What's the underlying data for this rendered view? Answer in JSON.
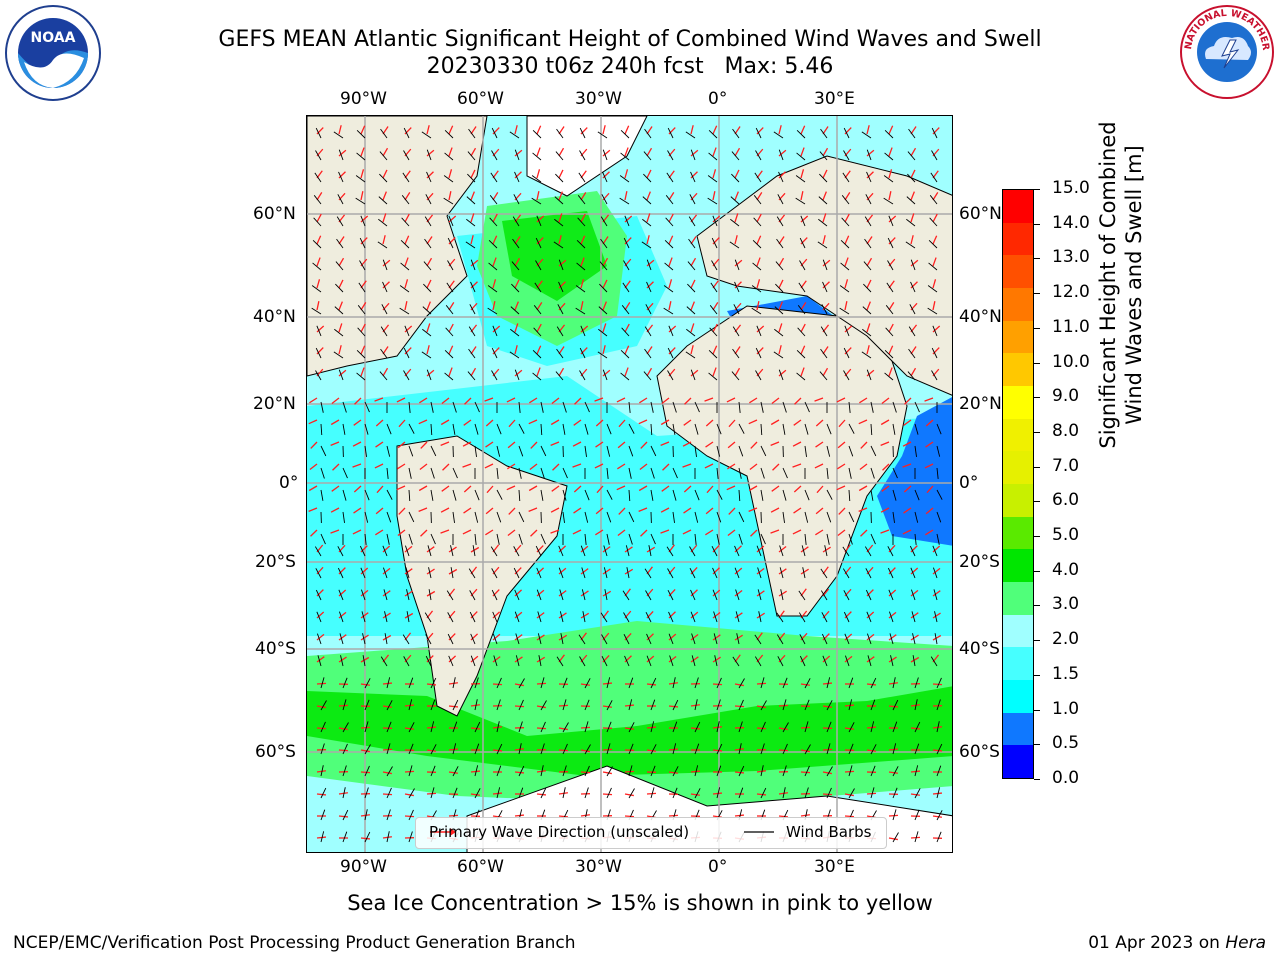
{
  "title": {
    "line1": "GEFS MEAN Atlantic Significant Height of Combined Wind Waves and Swell",
    "line2": "20230330 t06z 240h fcst   Max: 5.46"
  },
  "longitude_ticks": [
    "90°W",
    "60°W",
    "30°W",
    "0°",
    "30°E"
  ],
  "latitude_ticks": [
    "60°N",
    "40°N",
    "20°N",
    "0°",
    "20°S",
    "40°S",
    "60°S"
  ],
  "colorbar": {
    "title_line1": "Significant Height of Combined",
    "title_line2": "Wind Waves and Swell [m]",
    "labels": [
      "0.0",
      "0.5",
      "1.0",
      "1.5",
      "2.0",
      "3.0",
      "4.0",
      "5.0",
      "6.0",
      "7.0",
      "8.0",
      "9.0",
      "10.0",
      "11.0",
      "12.0",
      "13.0",
      "14.0",
      "15.0"
    ],
    "colors": [
      "#0000ff",
      "#0f78ff",
      "#00ffff",
      "#46ffff",
      "#a0ffff",
      "#50ff7a",
      "#00e600",
      "#5aea00",
      "#c8f000",
      "#e6f000",
      "#f0f000",
      "#ffff00",
      "#ffc800",
      "#ffa000",
      "#ff7800",
      "#ff5000",
      "#ff2800",
      "#ff0000"
    ]
  },
  "legend": {
    "wave_dir_label": "Primary Wave Direction (unscaled)",
    "wind_barbs_label": "Wind Barbs"
  },
  "ice_note": "Sea Ice Concentration > 15% is shown in pink to yellow",
  "footer": {
    "left": "NCEP/EMC/Verification Post Processing Product Generation Branch",
    "right_prefix": "01 Apr 2023 on ",
    "right_host": "Hera"
  },
  "logos": {
    "noaa": "NOAA",
    "nws_ring": "NATIONAL WEATHER SERVICE"
  },
  "colors": {
    "ocean_light": "#a0ffff",
    "ocean_mid": "#46ffff",
    "land": "#efedde",
    "wave_arrow": "#ff2020",
    "barb": "#000000"
  }
}
